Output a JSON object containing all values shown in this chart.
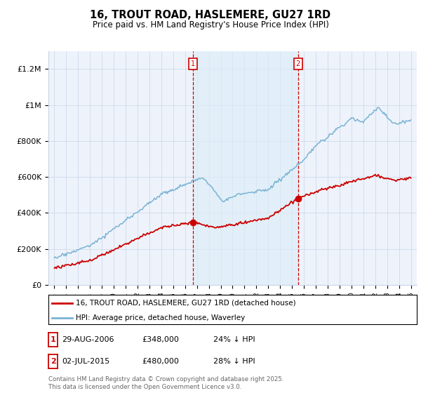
{
  "title": "16, TROUT ROAD, HASLEMERE, GU27 1RD",
  "subtitle": "Price paid vs. HM Land Registry's House Price Index (HPI)",
  "legend_line1": "16, TROUT ROAD, HASLEMERE, GU27 1RD (detached house)",
  "legend_line2": "HPI: Average price, detached house, Waverley",
  "annotation1": {
    "label": "1",
    "date": "29-AUG-2006",
    "price": "£348,000",
    "hpi": "24% ↓ HPI",
    "x": 2006.66,
    "price_y": 348000
  },
  "annotation2": {
    "label": "2",
    "date": "02-JUL-2015",
    "price": "£480,000",
    "hpi": "28% ↓ HPI",
    "x": 2015.5,
    "price_y": 480000
  },
  "footer": "Contains HM Land Registry data © Crown copyright and database right 2025.\nThis data is licensed under the Open Government Licence v3.0.",
  "ylim": [
    0,
    1300000
  ],
  "xlim": [
    1994.5,
    2025.5
  ],
  "hpi_color": "#7ab3d4",
  "hpi_fill_color": "#ddeef7",
  "price_color": "#cc0000",
  "annotation_color": "#cc0000",
  "background_color": "#eef3fb",
  "yticks": [
    0,
    200000,
    400000,
    600000,
    800000,
    1000000,
    1200000
  ],
  "ytick_labels": [
    "£0",
    "£200K",
    "£400K",
    "£600K",
    "£800K",
    "£1M",
    "£1.2M"
  ],
  "xticks": [
    1995,
    1996,
    1997,
    1998,
    1999,
    2000,
    2001,
    2002,
    2003,
    2004,
    2005,
    2006,
    2007,
    2008,
    2009,
    2010,
    2011,
    2012,
    2013,
    2014,
    2015,
    2016,
    2017,
    2018,
    2019,
    2020,
    2021,
    2022,
    2023,
    2024,
    2025
  ]
}
